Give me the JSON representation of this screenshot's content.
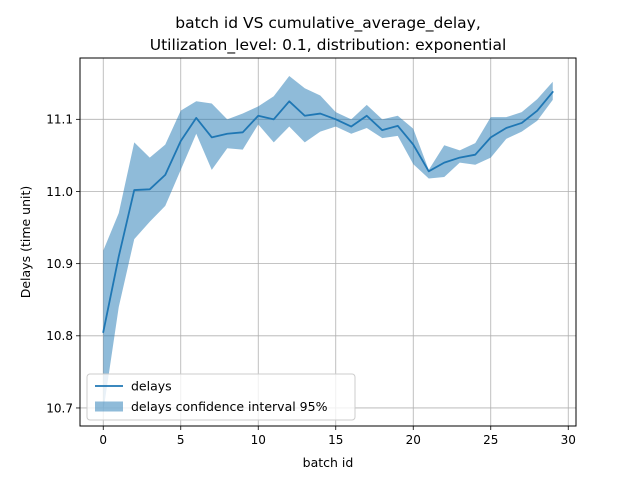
{
  "chart_data": {
    "type": "line",
    "title_line1": "batch id VS cumulative_average_delay,",
    "title_line2": "Utilization_level: 0.1, distribution: exponential",
    "xlabel": "batch id",
    "ylabel": "Delays (time unit)",
    "xlim": [
      -1.5,
      30.5
    ],
    "ylim": [
      10.675,
      11.185
    ],
    "x_ticks": [
      0,
      5,
      10,
      15,
      20,
      25,
      30
    ],
    "y_ticks": [
      10.7,
      10.8,
      10.9,
      11.0,
      11.1
    ],
    "y_tick_labels": [
      "10.7",
      "10.8",
      "10.9",
      "11.0",
      "11.1"
    ],
    "grid": true,
    "legend_position": "lower-left",
    "x": [
      0,
      1,
      2,
      3,
      4,
      5,
      6,
      7,
      8,
      9,
      10,
      11,
      12,
      13,
      14,
      15,
      16,
      17,
      18,
      19,
      20,
      21,
      22,
      23,
      24,
      25,
      26,
      27,
      28,
      29
    ],
    "series": [
      {
        "name": "delays",
        "color": "#1f77b4",
        "values": [
          10.805,
          10.91,
          11.002,
          11.003,
          11.023,
          11.07,
          11.102,
          11.075,
          11.08,
          11.082,
          11.105,
          11.1,
          11.125,
          11.105,
          11.108,
          11.1,
          11.09,
          11.105,
          11.085,
          11.091,
          11.065,
          11.028,
          11.04,
          11.047,
          11.051,
          11.075,
          11.088,
          11.095,
          11.112,
          11.138
        ]
      }
    ],
    "confidence_interval": {
      "name": "delays confidence interval 95%",
      "color": "#1f77b4",
      "opacity": 0.5,
      "upper": [
        10.918,
        10.97,
        11.068,
        11.047,
        11.065,
        11.112,
        11.125,
        11.122,
        11.1,
        11.108,
        11.118,
        11.132,
        11.16,
        11.143,
        11.133,
        11.11,
        11.1,
        11.12,
        11.1,
        11.105,
        11.087,
        11.03,
        11.064,
        11.057,
        11.067,
        11.103,
        11.103,
        11.11,
        11.128,
        11.152
      ],
      "lower": [
        10.695,
        10.84,
        10.934,
        10.958,
        10.98,
        11.03,
        11.08,
        11.03,
        11.06,
        11.058,
        11.093,
        11.068,
        11.09,
        11.068,
        11.083,
        11.09,
        11.08,
        11.088,
        11.074,
        11.077,
        11.038,
        11.018,
        11.02,
        11.04,
        11.037,
        11.047,
        11.073,
        11.083,
        11.098,
        11.127
      ]
    }
  }
}
